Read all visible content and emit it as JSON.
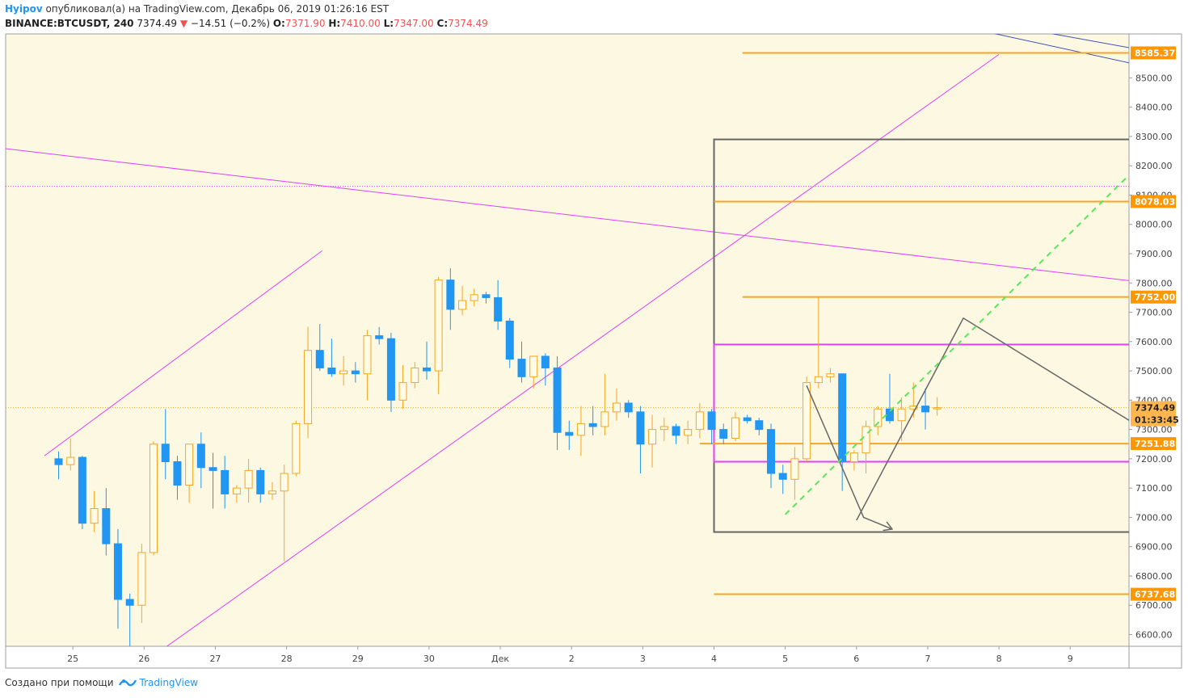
{
  "header": {
    "author": "Hyipov",
    "published_text": "опубликовал(а) на TradingView.com, Декабрь 06, 2019 01:26:16 EST",
    "symbol": "BINANCE:BTCUSDT, 240",
    "last": "7374.49",
    "change": "−14.51 (−0.2%)",
    "o_label": "O:",
    "o": "7371.90",
    "h_label": "H:",
    "h": "7410.00",
    "l_label": "L:",
    "l": "7347.00",
    "c_label": "C:",
    "c": "7374.49"
  },
  "footer": {
    "text": "Создано при помощи",
    "brand": "TradingView"
  },
  "colors": {
    "plot_bg": "#fdf8e1",
    "up": "#f5a623",
    "down": "#2196f3",
    "level": "#f5a623",
    "magenta": "#e040fb",
    "blue_line": "#3f51b5",
    "green_arrow": "#5ae65a",
    "gray": "#666666"
  },
  "chart_data": {
    "type": "candlestick",
    "symbol": "BINANCE:BTCUSDT",
    "timeframe": "240",
    "ylim": [
      6560,
      8650
    ],
    "x_ticks": [
      "25",
      "26",
      "27",
      "28",
      "29",
      "30",
      "Дек",
      "2",
      "3",
      "4",
      "5",
      "6",
      "7",
      "8",
      "9"
    ],
    "y_ticks": [
      "6600.00",
      "6700.00",
      "6800.00",
      "6900.00",
      "7000.00",
      "7100.00",
      "7200.00",
      "7300.00",
      "7400.00",
      "7500.00",
      "7600.00",
      "7700.00",
      "7800.00",
      "7900.00",
      "8000.00",
      "8100.00",
      "8200.00",
      "8300.00",
      "8400.00",
      "8500.00"
    ],
    "price_labels": [
      {
        "text": "8585.37",
        "value": 8585.37,
        "type": "level"
      },
      {
        "text": "8078.03",
        "value": 8078.03,
        "type": "level"
      },
      {
        "text": "7752.00",
        "value": 7752.0,
        "type": "level"
      },
      {
        "text": "7374.49",
        "value": 7374.49,
        "type": "last"
      },
      {
        "text": "01:33:45",
        "value": 7333,
        "type": "countdown"
      },
      {
        "text": "7251.88",
        "value": 7251.88,
        "type": "level"
      },
      {
        "text": "6737.68",
        "value": 6737.68,
        "type": "level"
      }
    ],
    "candles": [
      [
        24.8,
        7200,
        7225,
        7130,
        7180
      ],
      [
        24.967,
        7180,
        7270,
        7160,
        7205
      ],
      [
        25.133,
        7205,
        7210,
        6960,
        6980
      ],
      [
        25.3,
        6980,
        7090,
        6950,
        7030
      ],
      [
        25.467,
        7030,
        7100,
        6870,
        6910
      ],
      [
        25.633,
        6910,
        6960,
        6620,
        6720
      ],
      [
        25.8,
        6720,
        6740,
        6560,
        6700
      ],
      [
        25.967,
        6700,
        6910,
        6640,
        6880
      ],
      [
        26.133,
        6880,
        7260,
        6870,
        7250
      ],
      [
        26.3,
        7250,
        7370,
        7130,
        7190
      ],
      [
        26.467,
        7190,
        7210,
        7060,
        7110
      ],
      [
        26.633,
        7110,
        7250,
        7050,
        7250
      ],
      [
        26.8,
        7250,
        7290,
        7100,
        7170
      ],
      [
        26.967,
        7170,
        7220,
        7030,
        7160
      ],
      [
        27.133,
        7160,
        7210,
        7030,
        7080
      ],
      [
        27.3,
        7080,
        7110,
        7050,
        7100
      ],
      [
        27.467,
        7100,
        7200,
        7050,
        7160
      ],
      [
        27.633,
        7160,
        7170,
        7050,
        7080
      ],
      [
        27.8,
        7080,
        7120,
        7060,
        7090
      ],
      [
        27.967,
        7090,
        7180,
        6850,
        7150
      ],
      [
        28.133,
        7150,
        7330,
        7140,
        7320
      ],
      [
        28.3,
        7320,
        7650,
        7270,
        7570
      ],
      [
        28.467,
        7570,
        7660,
        7500,
        7510
      ],
      [
        28.633,
        7510,
        7610,
        7480,
        7490
      ],
      [
        28.8,
        7490,
        7550,
        7450,
        7500
      ],
      [
        28.967,
        7500,
        7530,
        7460,
        7490
      ],
      [
        29.133,
        7490,
        7640,
        7400,
        7620
      ],
      [
        29.3,
        7620,
        7650,
        7590,
        7610
      ],
      [
        29.467,
        7610,
        7630,
        7360,
        7400
      ],
      [
        29.633,
        7400,
        7520,
        7370,
        7460
      ],
      [
        29.8,
        7460,
        7530,
        7440,
        7510
      ],
      [
        29.967,
        7510,
        7600,
        7470,
        7500
      ],
      [
        30.133,
        7500,
        7820,
        7420,
        7810
      ],
      [
        30.3,
        7810,
        7850,
        7640,
        7710
      ],
      [
        30.467,
        7710,
        7790,
        7690,
        7740
      ],
      [
        30.633,
        7740,
        7780,
        7720,
        7760
      ],
      [
        30.8,
        7760,
        7770,
        7730,
        7750
      ],
      [
        30.967,
        7750,
        7810,
        7640,
        7670
      ],
      [
        31.133,
        7670,
        7680,
        7510,
        7540
      ],
      [
        31.3,
        7540,
        7600,
        7460,
        7480
      ],
      [
        31.467,
        7480,
        7550,
        7440,
        7550
      ],
      [
        31.633,
        7550,
        7560,
        7450,
        7510
      ],
      [
        31.8,
        7510,
        7550,
        7230,
        7290
      ],
      [
        31.967,
        7290,
        7330,
        7230,
        7280
      ],
      [
        32.133,
        7280,
        7380,
        7210,
        7320
      ],
      [
        32.3,
        7320,
        7380,
        7280,
        7310
      ],
      [
        32.467,
        7310,
        7490,
        7280,
        7360
      ],
      [
        32.633,
        7360,
        7440,
        7330,
        7390
      ],
      [
        32.8,
        7390,
        7400,
        7340,
        7360
      ],
      [
        32.967,
        7360,
        7380,
        7150,
        7250
      ],
      [
        33.133,
        7250,
        7350,
        7170,
        7300
      ],
      [
        33.3,
        7300,
        7340,
        7260,
        7310
      ],
      [
        33.467,
        7310,
        7320,
        7250,
        7280
      ],
      [
        33.633,
        7280,
        7330,
        7250,
        7300
      ],
      [
        33.8,
        7300,
        7390,
        7270,
        7360
      ],
      [
        33.967,
        7360,
        7370,
        7250,
        7300
      ],
      [
        34.133,
        7300,
        7320,
        7250,
        7270
      ],
      [
        34.3,
        7270,
        7360,
        7260,
        7340
      ],
      [
        34.467,
        7340,
        7350,
        7320,
        7330
      ],
      [
        34.633,
        7330,
        7340,
        7280,
        7300
      ],
      [
        34.8,
        7300,
        7320,
        7100,
        7150
      ],
      [
        34.967,
        7150,
        7180,
        7080,
        7130
      ],
      [
        35.133,
        7130,
        7240,
        7060,
        7200
      ],
      [
        35.3,
        7200,
        7480,
        7190,
        7460
      ],
      [
        35.467,
        7460,
        7750,
        7440,
        7480
      ],
      [
        35.633,
        7480,
        7510,
        7460,
        7490
      ],
      [
        35.8,
        7490,
        7490,
        7090,
        7190
      ],
      [
        35.967,
        7190,
        7230,
        7160,
        7220
      ],
      [
        36.133,
        7220,
        7330,
        7150,
        7310
      ],
      [
        36.3,
        7310,
        7380,
        7280,
        7370
      ],
      [
        36.467,
        7370,
        7490,
        7320,
        7330
      ],
      [
        36.633,
        7330,
        7410,
        7260,
        7370
      ],
      [
        36.8,
        7370,
        7460,
        7340,
        7380
      ],
      [
        36.967,
        7380,
        7440,
        7300,
        7360
      ],
      [
        37.133,
        7371.9,
        7410,
        7347,
        7374.49
      ]
    ],
    "horizontal_levels": [
      {
        "from_day": 34.4,
        "value": 8585.37
      },
      {
        "from_day": 34.0,
        "value": 8078.03
      },
      {
        "from_day": 34.4,
        "value": 7752.0
      },
      {
        "from_day": 33.8,
        "value": 7251.88
      },
      {
        "from_day": 34.0,
        "value": 6737.68
      }
    ],
    "channel_lines": [
      {
        "p1": [
          24.6,
          7210
        ],
        "p2": [
          28.5,
          7910
        ],
        "color": "magenta"
      },
      {
        "p1": [
          25.8,
          6470
        ],
        "p2": [
          38.0,
          8580
        ],
        "color": "magenta"
      },
      {
        "p1": [
          24.0,
          8260
        ],
        "p2": [
          40.8,
          7780
        ],
        "color": "magenta"
      },
      {
        "p1": [
          36.5,
          8750
        ],
        "p2": [
          40.8,
          8560
        ],
        "color": "blue_line"
      },
      {
        "p1": [
          37.2,
          8690
        ],
        "p2": [
          40.8,
          8500
        ],
        "color": "blue_line"
      }
    ],
    "rectangles": [
      {
        "day1": 34.0,
        "day2": 41.0,
        "p1": 8290,
        "p2": 6950,
        "color": "gray"
      },
      {
        "day1": 34.0,
        "day2": 41.0,
        "p1": 7590,
        "p2": 7190,
        "color": "magenta"
      }
    ],
    "arrows": [
      {
        "points": [
          [
            35.3,
            7450
          ],
          [
            36.1,
            7000
          ],
          [
            36.5,
            6960
          ]
        ],
        "color": "gray"
      },
      {
        "points": [
          [
            36.0,
            6990
          ],
          [
            37.5,
            7680
          ],
          [
            40.5,
            7230
          ]
        ],
        "color": "gray"
      },
      {
        "points": [
          [
            35.0,
            7010
          ],
          [
            40.0,
            8210
          ]
        ],
        "color": "green_arrow",
        "dashed": true
      }
    ]
  }
}
